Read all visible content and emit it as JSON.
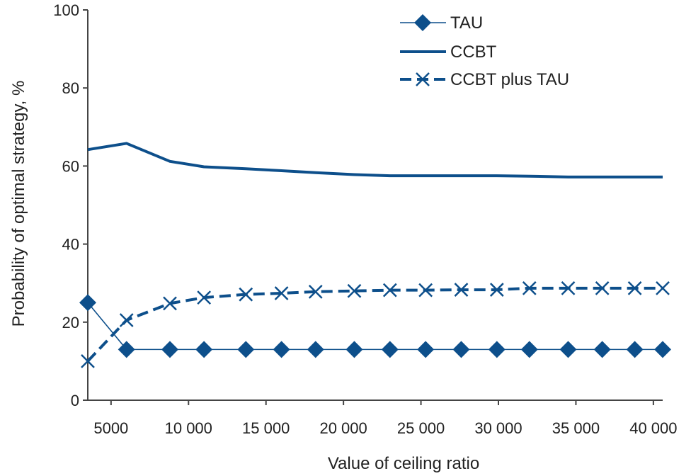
{
  "chart_data": {
    "type": "line",
    "xlabel": "Value of ceiling ratio",
    "ylabel": "Probability of optimal strategy, %",
    "xlim": [
      3500,
      40600
    ],
    "ylim": [
      0,
      100
    ],
    "x_ticks": [
      5000,
      10000,
      15000,
      20000,
      25000,
      30000,
      35000,
      40000
    ],
    "x_tick_labels": [
      "5000",
      "10 000",
      "15 000",
      "20 000",
      "25 000",
      "30 000",
      "35 000",
      "40 000"
    ],
    "y_ticks": [
      0,
      20,
      40,
      60,
      80,
      100
    ],
    "y_tick_labels": [
      "0",
      "20",
      "40",
      "60",
      "80",
      "100"
    ],
    "legend_position": "top-right",
    "colors": {
      "series": "#0d4f8b",
      "axis": "#444444"
    },
    "series": [
      {
        "name": "TAU",
        "style": "thin-line-diamond-markers",
        "x": [
          3500,
          6000,
          8800,
          11000,
          13700,
          16000,
          18200,
          20700,
          23000,
          25300,
          27600,
          29900,
          32000,
          34500,
          36700,
          38800,
          40600
        ],
        "y": [
          25,
          13,
          13,
          13,
          13,
          13,
          13,
          13,
          13,
          13,
          13,
          13,
          13,
          13,
          13,
          13,
          13
        ]
      },
      {
        "name": "CCBT",
        "style": "solid",
        "x": [
          3500,
          6000,
          8800,
          11000,
          13700,
          16000,
          18200,
          20700,
          23000,
          25300,
          27600,
          29900,
          32000,
          34500,
          36700,
          38800,
          40600
        ],
        "y": [
          64.2,
          65.8,
          61.2,
          59.8,
          59.3,
          58.8,
          58.3,
          57.8,
          57.5,
          57.5,
          57.5,
          57.5,
          57.4,
          57.2,
          57.2,
          57.2,
          57.2
        ]
      },
      {
        "name": "CCBT plus TAU",
        "style": "dashed-x-markers",
        "x": [
          3500,
          6000,
          8800,
          11000,
          13700,
          16000,
          18200,
          20700,
          23000,
          25300,
          27600,
          29900,
          32000,
          34500,
          36700,
          38800,
          40600
        ],
        "y": [
          10,
          20.5,
          24.8,
          26.3,
          27.1,
          27.4,
          27.8,
          28,
          28.2,
          28.2,
          28.3,
          28.3,
          28.7,
          28.7,
          28.7,
          28.7,
          28.7
        ]
      }
    ]
  }
}
